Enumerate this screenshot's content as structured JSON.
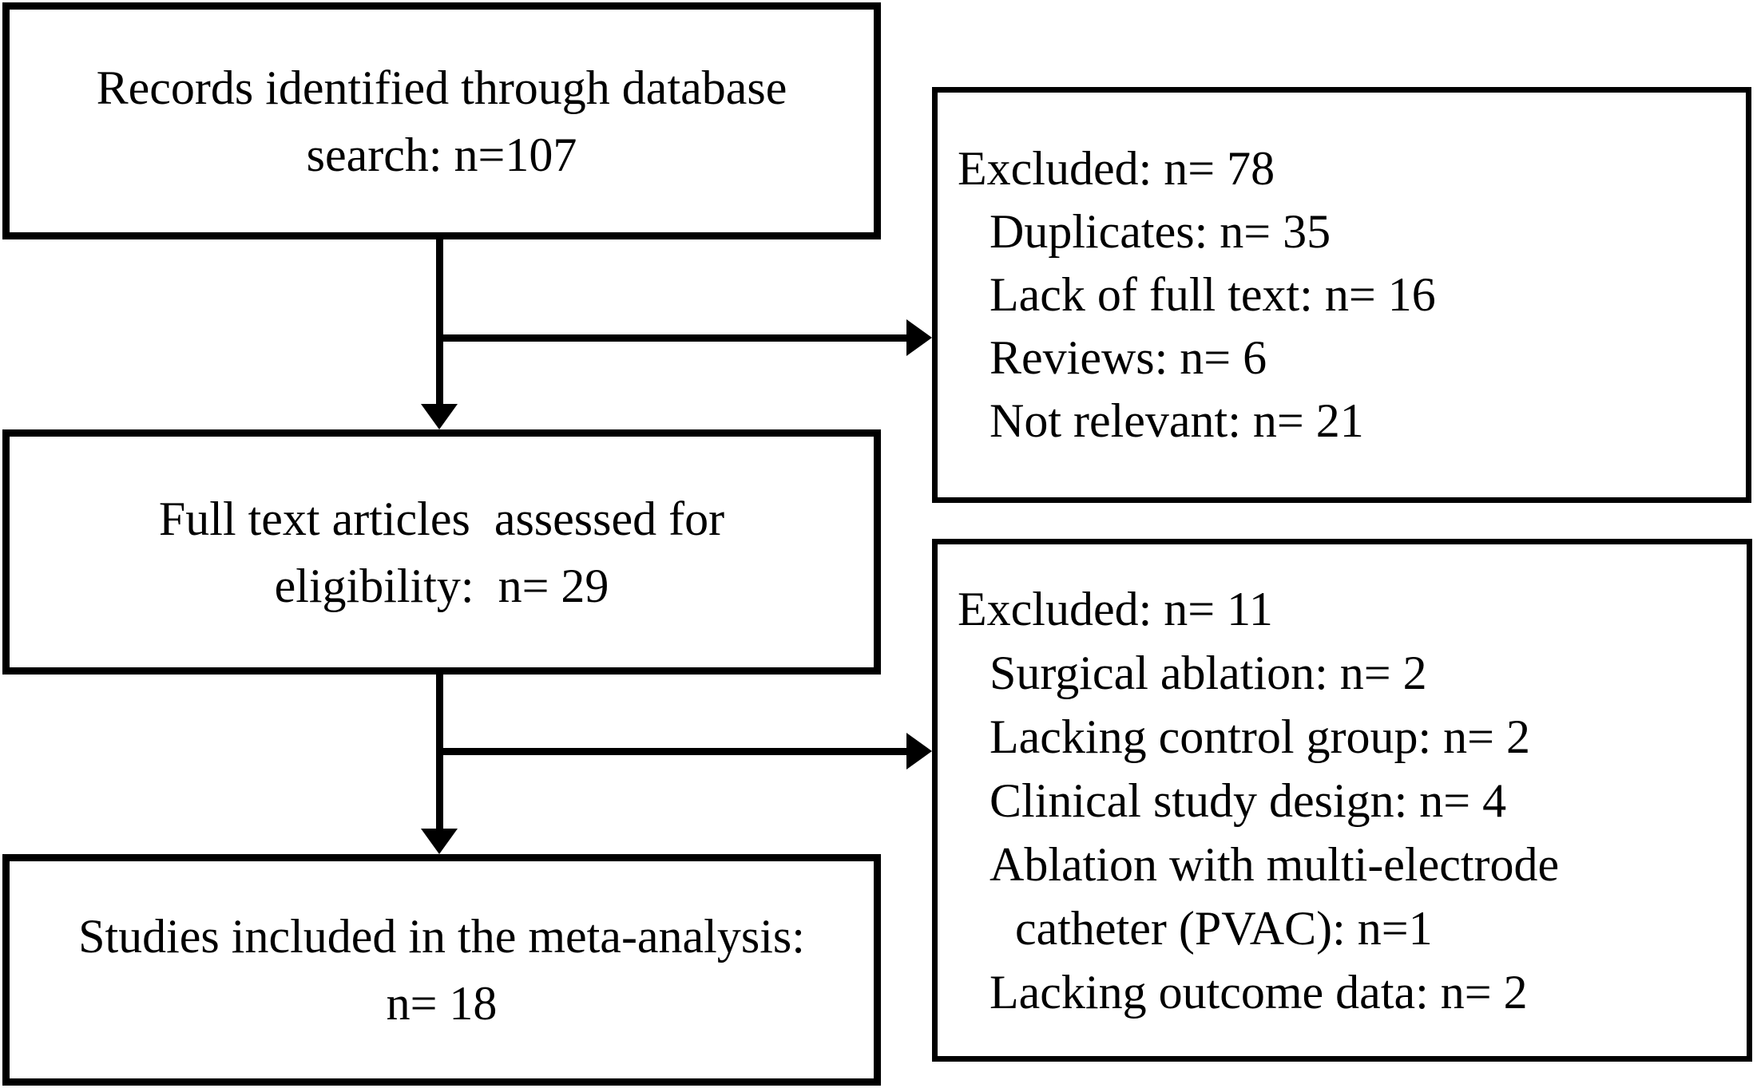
{
  "colors": {
    "background": "#ffffff",
    "border": "#000000",
    "text": "#000000",
    "arrow": "#000000"
  },
  "boxes": {
    "records": {
      "line1": "Records identified through database",
      "line2": "search: n=107"
    },
    "full_text": {
      "line1": "Full text articles  assessed for",
      "line2": "eligibility:  n= 29"
    },
    "included": {
      "line1": "Studies included in the meta-analysis:",
      "line2": "n= 18"
    },
    "excluded_screening": {
      "title": "Excluded: n= 78",
      "items": [
        "Duplicates: n= 35",
        "Lack of full text: n= 16",
        "Reviews: n= 6",
        "Not relevant: n= 21"
      ]
    },
    "excluded_eligibility": {
      "title": "Excluded: n= 11",
      "items": [
        "Surgical ablation: n= 2",
        "Lacking control group: n= 2",
        "Clinical study design: n= 4",
        "Ablation with multi-electrode",
        "catheter (PVAC): n=1",
        "Lacking outcome data: n= 2"
      ]
    }
  }
}
